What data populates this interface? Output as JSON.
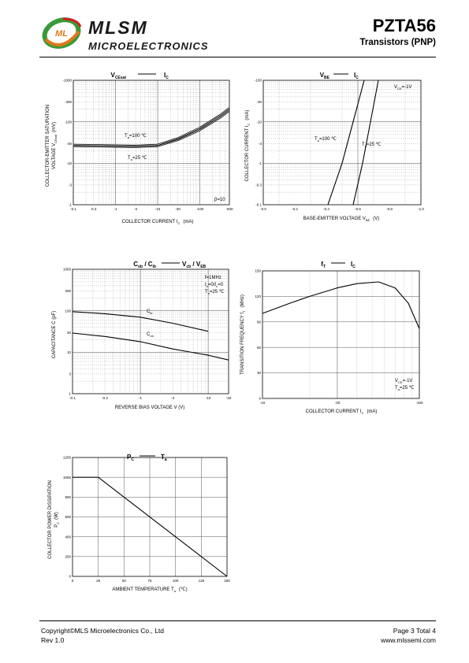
{
  "header": {
    "brand_name": "MLSM",
    "brand_sub": "MICROELECTRONICS",
    "logo_letters": "ML",
    "part_number": "PZTA56",
    "part_type": "Transistors (PNP)"
  },
  "footer": {
    "copyright": "Copyright©MLS Microelectronics Co., Ltd",
    "rev": "Rev 1.0",
    "page": "Page 3 Total 4",
    "url": "www.mlssemi.com"
  },
  "colors": {
    "logo_green": "#3a9a3a",
    "logo_orange": "#e07818",
    "logo_red": "#d02020",
    "grid": "#888888"
  },
  "chart_data": [
    {
      "type": "line",
      "title_main": "V",
      "title_sub": "CEsat",
      "title_right": "I",
      "title_right_sub": "C",
      "xlabel": "COLLECTOR CURRENT   I",
      "xlabel_sub": "C",
      "xlabel_unit": "(mA)",
      "ylabel": "COLLECTOR-EMITTER SATURATION",
      "ylabel2": "VOLTAGE   V",
      "ylabel2_sub": "CEsat",
      "ylabel2_unit": "(mV)",
      "x_scale": "log",
      "y_scale": "log",
      "xlim": [
        -0.1,
        -500
      ],
      "ylim": [
        -1,
        -1000
      ],
      "x_ticks": [
        "-0.1",
        "-0.3",
        "-1",
        "-3",
        "-10",
        "-30",
        "-100",
        "-500"
      ],
      "y_ticks": [
        "-1",
        "-3",
        "-10",
        "-30",
        "-100",
        "-300",
        "-1000"
      ],
      "annotations": [
        "β=10"
      ],
      "series": [
        {
          "name": "T =100 ℃",
          "name_main": "T",
          "name_sub": "a",
          "name_rest": "=100 ℃",
          "x": [
            -0.1,
            -0.3,
            -1,
            -3,
            -10,
            -30,
            -100,
            -300,
            -500
          ],
          "y": [
            -26,
            -25.5,
            -25,
            -24.5,
            -26,
            -36,
            -63,
            -125,
            -185
          ]
        },
        {
          "name": "T =25 ℃",
          "name_main": "T",
          "name_sub": "a",
          "name_rest": "=25 ℃",
          "x": [
            -0.1,
            -0.3,
            -1,
            -3,
            -10,
            -30,
            -100,
            -300,
            -500
          ],
          "y": [
            -28,
            -27.5,
            -27,
            -26.5,
            -28,
            -40,
            -72,
            -145,
            -215
          ]
        }
      ]
    },
    {
      "type": "line",
      "title_main": "V",
      "title_sub": "BE",
      "title_right": "I",
      "title_right_sub": "C",
      "xlabel": "BASE-EMITTER VOLTAGE   V",
      "xlabel_sub": "BE",
      "xlabel_unit": "(V)",
      "ylabel": "COLLECTOR CURRENT   I",
      "ylabel_sub": "C",
      "ylabel_unit": "(mA)",
      "x_scale": "linear",
      "y_scale": "log",
      "xlim": [
        0,
        -1.0
      ],
      "ylim": [
        -0.1,
        -100
      ],
      "x_ticks": [
        "-0.0",
        "-0.2",
        "-0.4",
        "-0.6",
        "-0.8",
        "-1.0"
      ],
      "y_ticks": [
        "-0.1",
        "-0.3",
        "-1",
        "-3",
        "-10",
        "-30",
        "-100"
      ],
      "annotations": [
        "V =-1V"
      ],
      "annotation_main": "V",
      "annotation_sub": "CE",
      "annotation_rest": "=-1V",
      "series": [
        {
          "name": "T =100 ℃",
          "name_main": "T",
          "name_sub": "a",
          "name_rest": "=100 ℃",
          "x": [
            -0.41,
            -0.5,
            -0.57,
            -0.64
          ],
          "y": [
            -0.1,
            -1,
            -10,
            -100
          ]
        },
        {
          "name": "T =25 ℃",
          "name_main": "T",
          "name_sub": "a",
          "name_rest": "=25 ℃",
          "x": [
            -0.57,
            -0.63,
            -0.68,
            -0.73
          ],
          "y": [
            -0.1,
            -1,
            -10,
            -100
          ]
        }
      ]
    },
    {
      "type": "line",
      "title_main": "C",
      "title_sub": "ob",
      "title_mid": " / C",
      "title_mid_sub": "ib",
      "title_right": "V",
      "title_right_sub": "cb",
      "title_right2": " / V",
      "title_right2_sub": "EB",
      "xlabel": "REVERSE BIAS VOLTAGE   V   (V)",
      "ylabel": "CAPACITANCE   C   (pF)",
      "x_scale": "log",
      "y_scale": "log",
      "xlim": [
        -0.1,
        -20
      ],
      "ylim": [
        1,
        1000
      ],
      "x_ticks": [
        "-0.1",
        "-0.3",
        "-1",
        "-3",
        "-10",
        "-20"
      ],
      "y_ticks": [
        "1",
        "3",
        "10",
        "30",
        "100",
        "300",
        "1000"
      ],
      "annotation_lines": [
        "f=1MHz",
        "I =0/I =0",
        "T =25 ℃"
      ],
      "annotation_subs": [
        "",
        "e          c",
        ""
      ],
      "annotation_ta_main": "T",
      "annotation_ta_sub": "a",
      "annotation_ta_rest": "=25 ℃",
      "annotation_ie_main": "I",
      "annotation_ie_sub": "e",
      "annotation_ie_mid": "=0/I",
      "annotation_ic_sub": "c",
      "annotation_ie_rest": "=0",
      "series": [
        {
          "name": "C ib",
          "name_main": "C",
          "name_sub": "ib",
          "x": [
            -0.1,
            -0.3,
            -1,
            -3,
            -10
          ],
          "y": [
            95,
            85,
            70,
            50,
            32
          ]
        },
        {
          "name": "C ob",
          "name_main": "C",
          "name_sub": "ob",
          "x": [
            -0.1,
            -0.3,
            -1,
            -3,
            -10,
            -20
          ],
          "y": [
            29,
            24,
            18,
            12,
            8.5,
            6.5
          ]
        }
      ]
    },
    {
      "type": "line",
      "title_main": "f",
      "title_sub": "T",
      "title_right": "I",
      "title_right_sub": "C",
      "xlabel": "COLLECTOR CURRENT   I",
      "xlabel_sub": "C",
      "xlabel_unit": "(mA)",
      "ylabel": "TRANSITION FREQUENCY   f",
      "ylabel_sub": "T",
      "ylabel_unit": "(MHz)",
      "x_scale": "log",
      "y_scale": "linear",
      "xlim": [
        -10,
        -100
      ],
      "ylim": [
        0,
        150
      ],
      "x_ticks": [
        "-10",
        "-30",
        "-100"
      ],
      "y_ticks": [
        "0",
        "30",
        "60",
        "90",
        "120",
        "150"
      ],
      "annotation_vce_main": "V",
      "annotation_vce_sub": "CE",
      "annotation_vce_rest": "=-1V",
      "annotation_ta_main": "T",
      "annotation_ta_sub": "a",
      "annotation_ta_rest": "=25 ℃",
      "series": [
        {
          "name": "",
          "x": [
            -10,
            -15,
            -20,
            -30,
            -40,
            -55,
            -70,
            -85,
            -100
          ],
          "y": [
            100,
            112,
            120,
            130,
            135,
            137,
            130,
            112,
            82
          ]
        }
      ]
    },
    {
      "type": "line",
      "title_main": "P",
      "title_sub": "C",
      "title_right": "T",
      "title_right_sub": "a",
      "xlabel": "AMBIENT TEMPERATURE   T",
      "xlabel_sub": "a",
      "xlabel_unit": "(℃)",
      "ylabel": "COLLECTOR POWER DISSIPATION",
      "ylabel2": "P",
      "ylabel2_sub": "C",
      "ylabel2_unit": "(W)",
      "x_scale": "linear",
      "y_scale": "linear",
      "xlim": [
        0,
        150
      ],
      "ylim": [
        0,
        1200
      ],
      "x_ticks": [
        "0",
        "25",
        "50",
        "75",
        "100",
        "125",
        "150"
      ],
      "y_ticks": [
        "0",
        "200",
        "400",
        "600",
        "800",
        "1000",
        "1200"
      ],
      "series": [
        {
          "name": "",
          "x": [
            0,
            25,
            150
          ],
          "y": [
            1000,
            1000,
            0
          ]
        }
      ]
    }
  ]
}
